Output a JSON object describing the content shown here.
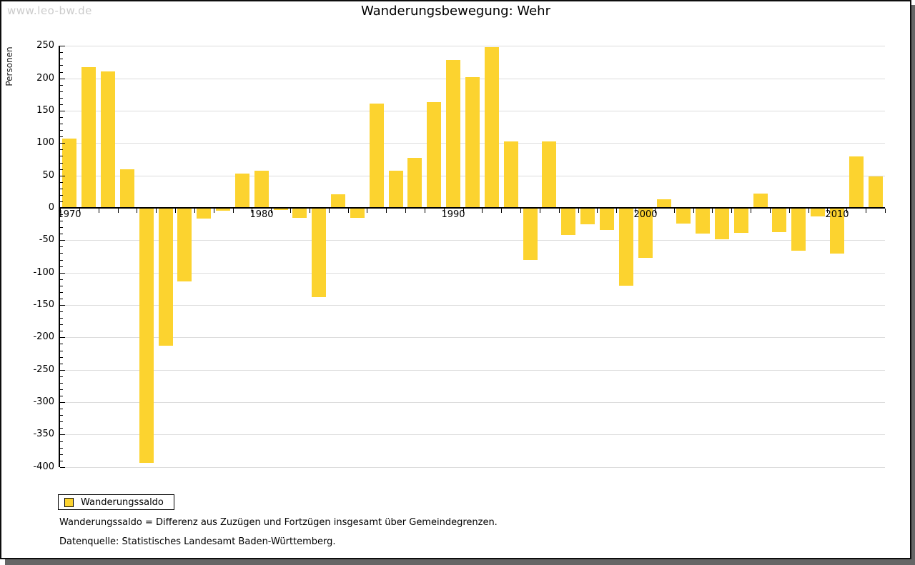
{
  "watermark": "www.leo-bw.de",
  "header": {
    "title": "Wanderungsbewegung: Wehr"
  },
  "legend": {
    "label": "Wanderungssaldo"
  },
  "footnotes": {
    "definition": "Wanderungssaldo = Differenz aus Zuzügen und Fortzügen insgesamt über Gemeindegrenzen.",
    "source": "Datenquelle: Statistisches Landesamt Baden-Württemberg."
  },
  "colors": {
    "bar": "#fcd32f",
    "grid": "#dddddd",
    "axis": "#000000",
    "watermark": "#cbcbcb",
    "frame_shadow": "#666666"
  },
  "chart_data": {
    "type": "bar",
    "title": "Wanderungsbewegung: Wehr",
    "xlabel": "",
    "ylabel": "Personen",
    "series_name": "Wanderungssaldo",
    "x": [
      1970,
      1971,
      1972,
      1973,
      1974,
      1975,
      1976,
      1977,
      1978,
      1979,
      1980,
      1981,
      1982,
      1983,
      1984,
      1985,
      1986,
      1987,
      1988,
      1989,
      1990,
      1991,
      1992,
      1993,
      1994,
      1995,
      1996,
      1997,
      1998,
      1999,
      2000,
      2001,
      2002,
      2003,
      2004,
      2005,
      2006,
      2007,
      2008,
      2009,
      2010,
      2011,
      2012
    ],
    "values": [
      107,
      217,
      211,
      59,
      -394,
      -213,
      -114,
      -16,
      -4,
      53,
      57,
      -3,
      -15,
      -138,
      21,
      -15,
      161,
      57,
      77,
      163,
      228,
      202,
      248,
      102,
      -81,
      102,
      -42,
      -25,
      -34,
      -120,
      -77,
      13,
      -24,
      -40,
      -49,
      -39,
      22,
      -38,
      -66,
      -13,
      -71,
      79,
      49
    ],
    "ylim": [
      -400,
      250
    ],
    "ytick_step": 50,
    "yminor_step": 10,
    "xtick_labels": [
      1970,
      1980,
      1990,
      2000,
      2010
    ],
    "grid": true,
    "legend_position": "bottom-left"
  }
}
